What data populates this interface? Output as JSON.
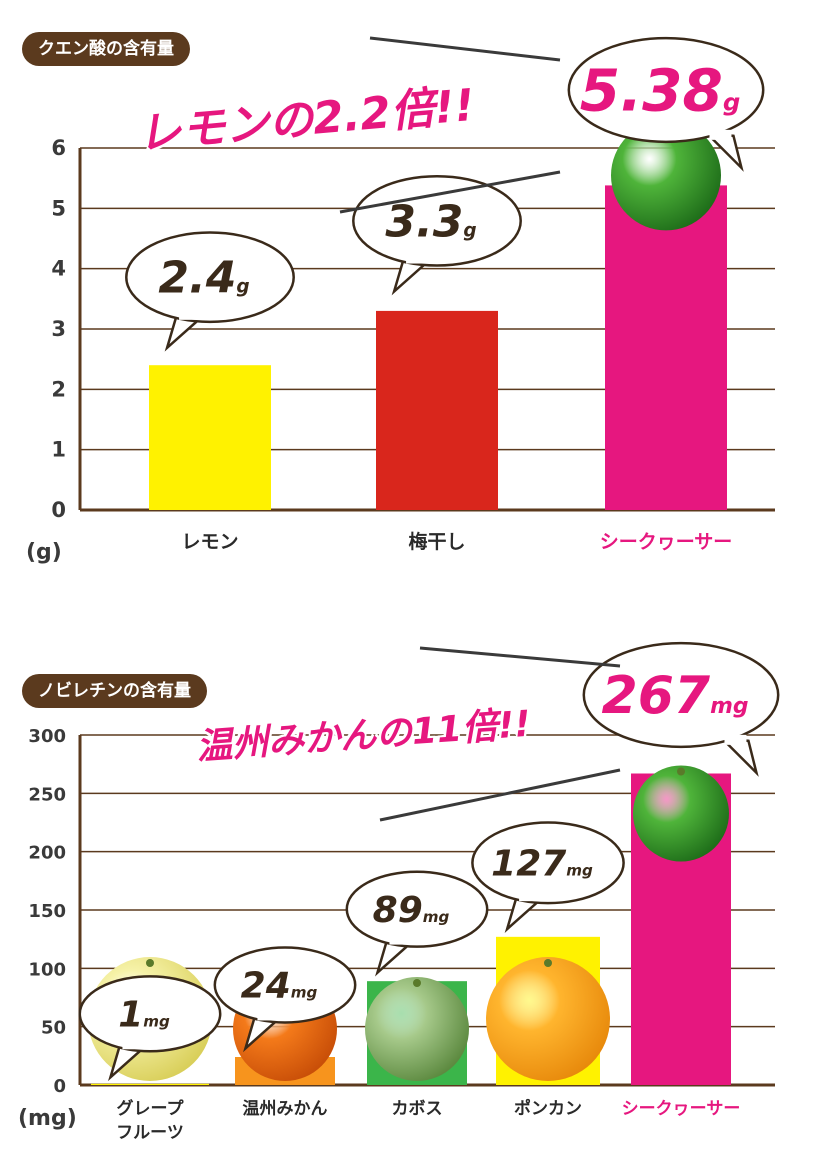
{
  "colors": {
    "brown": "#5b3a1e",
    "magenta": "#e6177f",
    "yellow": "#fff200",
    "red": "#d9261c",
    "orange": "#f7941d",
    "green": "#3bb54a",
    "grid": "#5b3a1e",
    "axis_text": "#3a3a3a"
  },
  "top": {
    "title": "クエン酸の含有量",
    "headline": "レモンの2.2倍!!",
    "unit": "(g)"
  },
  "bottom": {
    "title": "ノビレチンの含有量",
    "headline": "温州みかんの11倍!!",
    "unit": "(mg)"
  },
  "chart_data": [
    {
      "type": "bar",
      "title": "クエン酸の含有量",
      "ylabel": "(g)",
      "ylim": [
        0,
        6
      ],
      "yticks": [
        0,
        1,
        2,
        3,
        4,
        5,
        6
      ],
      "grid": true,
      "categories": [
        "レモン",
        "梅干し",
        "シークヮーサー"
      ],
      "values": [
        2.4,
        3.3,
        5.38
      ],
      "value_labels": [
        {
          "num": "2.4",
          "unit": "g"
        },
        {
          "num": "3.3",
          "unit": "g"
        },
        {
          "num": "5.38",
          "unit": "g"
        }
      ],
      "bar_colors": [
        "#fff200",
        "#d9261c",
        "#e6177f"
      ],
      "highlight_category": "シークヮーサー",
      "annotation": "レモンの2.2倍!!"
    },
    {
      "type": "bar",
      "title": "ノビレチンの含有量",
      "ylabel": "(mg)",
      "ylim": [
        0,
        300
      ],
      "yticks": [
        0,
        50,
        100,
        150,
        200,
        250,
        300
      ],
      "grid": true,
      "categories": [
        "グレープフルーツ",
        "温州みかん",
        "カボス",
        "ポンカン",
        "シークヮーサー"
      ],
      "category_lines": [
        [
          "グレープ",
          "フルーツ"
        ],
        [
          "温州みかん"
        ],
        [
          "カボス"
        ],
        [
          "ポンカン"
        ],
        [
          "シークヮーサー"
        ]
      ],
      "values": [
        1,
        24,
        89,
        127,
        267
      ],
      "value_labels": [
        {
          "num": "1",
          "unit": "mg"
        },
        {
          "num": "24",
          "unit": "mg"
        },
        {
          "num": "89",
          "unit": "mg"
        },
        {
          "num": "127",
          "unit": "mg"
        },
        {
          "num": "267",
          "unit": "mg"
        }
      ],
      "bar_colors": [
        "#fff200",
        "#f7941d",
        "#3bb54a",
        "#fff200",
        "#e6177f"
      ],
      "fruit_icons": [
        "grapefruit-icon",
        "mikan-icon",
        "kabosu-icon",
        "ponkan-icon",
        "shikuwasa-icon"
      ],
      "highlight_category": "シークヮーサー",
      "annotation": "温州みかんの11倍!!"
    }
  ]
}
